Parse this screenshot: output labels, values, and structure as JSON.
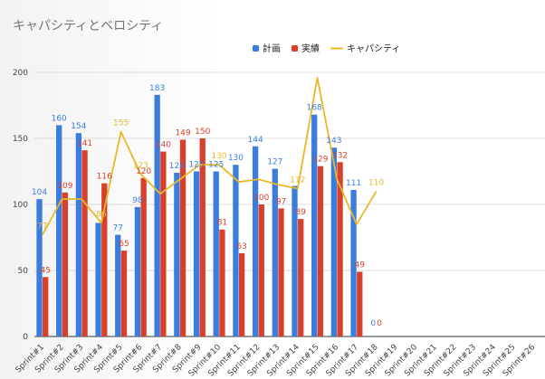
{
  "chart_data": {
    "type": "bar",
    "title": "キャパシティとベロシティ",
    "categories": [
      "Sprint#1",
      "Sprint#2",
      "Sprint#3",
      "Sprint#4",
      "Sprint#5",
      "Sprint#6",
      "Sprint#7",
      "Sprint#8",
      "Sprint#9",
      "Sprint#10",
      "Sprint#11",
      "Sprint#12",
      "Sprint#13",
      "Sprint#14",
      "Sprint#15",
      "Sprint#16",
      "Sprint#17",
      "Sprint#18",
      "Sprint#19",
      "Sprint#20",
      "Sprint#21",
      "Sprint#22",
      "Sprint#23",
      "Sprint#24",
      "Sprint#25",
      "Sprint#26"
    ],
    "series": [
      {
        "name": "計画",
        "kind": "bar",
        "color": "#3b7ddd",
        "values": [
          104,
          160,
          154,
          86,
          77,
          98,
          183,
          124,
          125,
          125,
          130,
          144,
          127,
          114,
          168,
          143,
          111,
          0,
          null,
          null,
          null,
          null,
          null,
          null,
          null,
          null
        ],
        "labels": [
          "104",
          "160",
          "154",
          "",
          "77",
          "98",
          "183",
          "124",
          "125",
          "125",
          "130",
          "144",
          "127",
          "",
          "168",
          "143",
          "111",
          "0",
          "",
          "",
          "",
          "",
          "",
          "",
          "",
          ""
        ]
      },
      {
        "name": "実績",
        "kind": "bar",
        "color": "#d9402b",
        "values": [
          45,
          109,
          141,
          116,
          65,
          120,
          140,
          149,
          150,
          81,
          63,
          100,
          97,
          89,
          129,
          132,
          49,
          0,
          null,
          null,
          null,
          null,
          null,
          null,
          null,
          null
        ],
        "labels": [
          "45",
          "109",
          "141",
          "116",
          "65",
          "120",
          "140",
          "149",
          "150",
          "81",
          "63",
          "100",
          "97",
          "89",
          "129",
          "132",
          "49",
          "0",
          "",
          "",
          "",
          "",
          "",
          "",
          "",
          ""
        ]
      },
      {
        "name": "キャパシティ",
        "kind": "line",
        "color": "#e8b829",
        "values": [
          77,
          104,
          104,
          86,
          155,
          123,
          108,
          119,
          130,
          130,
          117,
          119,
          115,
          112,
          196,
          119,
          85,
          110,
          null,
          null,
          null,
          null,
          null,
          null,
          null,
          null
        ],
        "labels": [
          "77",
          "",
          "",
          "86",
          "155",
          "123",
          "",
          "",
          "",
          "130",
          "",
          "",
          "",
          "112",
          "",
          "",
          "",
          "110",
          "",
          "",
          "",
          "",
          "",
          "",
          "",
          ""
        ]
      }
    ],
    "ylim": [
      0,
      200
    ],
    "yticks": [
      "0",
      "50",
      "100",
      "150",
      "200"
    ],
    "xlabel": "",
    "ylabel": "",
    "grid": true,
    "legend_position": "top-center"
  }
}
